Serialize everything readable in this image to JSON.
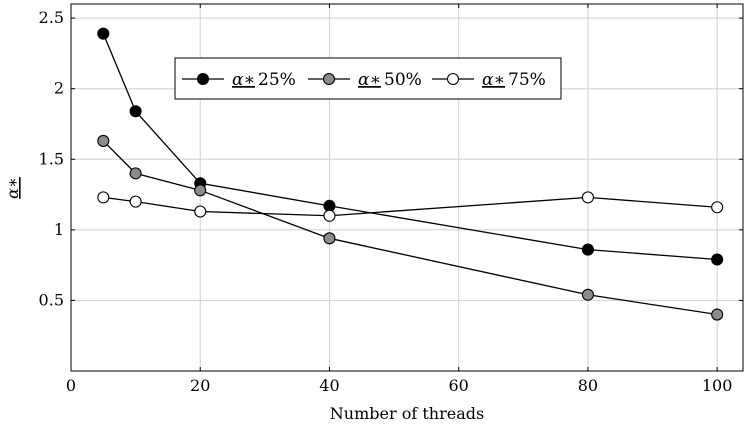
{
  "chart_data": {
    "type": "line",
    "xlabel": "Number of threads",
    "ylabel": "α∗",
    "x": [
      5,
      10,
      20,
      40,
      80,
      100
    ],
    "xlim": [
      0,
      104
    ],
    "ylim": [
      0,
      2.6
    ],
    "xticks": [
      0,
      20,
      40,
      60,
      80,
      100
    ],
    "yticks": [
      0.5,
      1,
      1.5,
      2,
      2.5
    ],
    "xtick_labels": [
      "0",
      "20",
      "40",
      "60",
      "80",
      "100"
    ],
    "ytick_labels": [
      "0.5",
      "1",
      "1.5",
      "2",
      "2.5"
    ],
    "grid": true,
    "legend_position": "top-center",
    "series": [
      {
        "name": "α∗25%",
        "symbol": "α∗",
        "pct": "25%",
        "marker_fill": "#000000",
        "values": [
          2.39,
          1.84,
          1.33,
          1.17,
          0.86,
          0.79
        ]
      },
      {
        "name": "α∗50%",
        "symbol": "α∗",
        "pct": "50%",
        "marker_fill": "#8c8c8c",
        "values": [
          1.63,
          1.4,
          1.28,
          0.94,
          0.54,
          0.4
        ]
      },
      {
        "name": "α∗75%",
        "symbol": "α∗",
        "pct": "75%",
        "marker_fill": "#ffffff",
        "values": [
          1.23,
          1.2,
          1.13,
          1.1,
          1.23,
          1.16
        ]
      }
    ]
  }
}
